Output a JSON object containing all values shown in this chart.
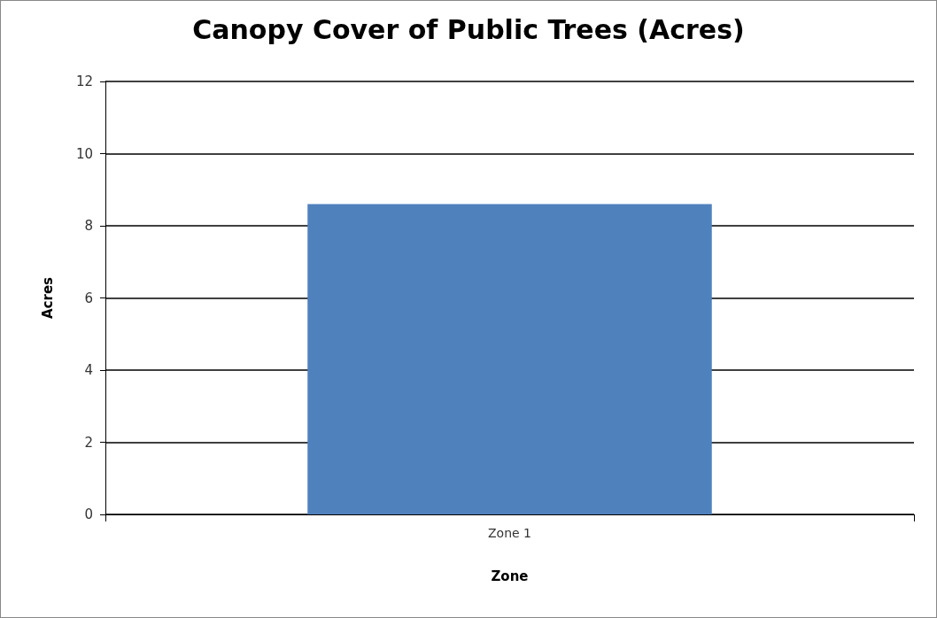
{
  "chart_data": {
    "type": "bar",
    "title": "Canopy Cover of Public Trees (Acres)",
    "xlabel": "Zone",
    "ylabel": "Acres",
    "categories": [
      "Zone 1"
    ],
    "values": [
      8.6
    ],
    "color": "#4f81bd",
    "ylim": [
      0,
      12
    ],
    "yticks": [
      0,
      2,
      4,
      6,
      8,
      10,
      12
    ],
    "grid": "y"
  }
}
